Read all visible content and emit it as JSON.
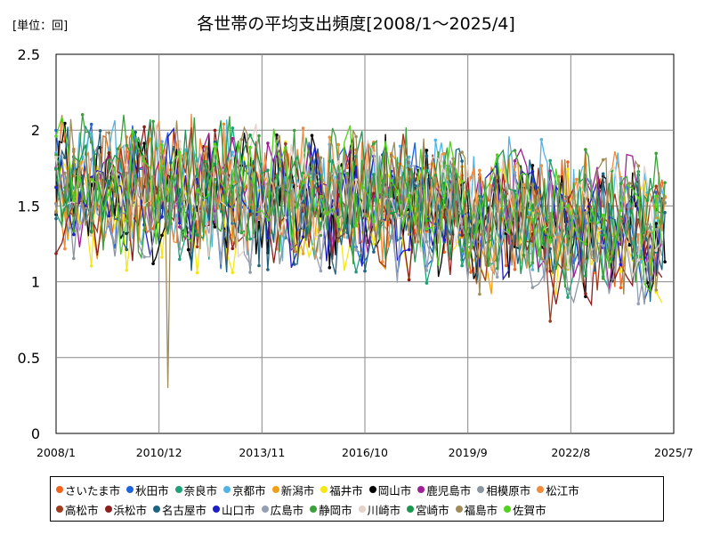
{
  "unit_label": "[単位：回]",
  "chart_data": {
    "type": "line",
    "title": "各世帯の平均支出頻度[2008/1～2025/4]",
    "xlabel": "",
    "ylabel": "",
    "x_range": [
      "2008/1",
      "2025/7"
    ],
    "x_ticks": [
      "2008/1",
      "2010/12",
      "2013/11",
      "2016/10",
      "2019/9",
      "2022/8",
      "2025/7"
    ],
    "y_range": [
      0,
      2.5
    ],
    "y_ticks": [
      "0",
      "0.5",
      "1",
      "1.5",
      "2",
      "2.5"
    ],
    "grid": true,
    "legend_position": "bottom",
    "series": [
      {
        "name": "さいたま市",
        "color": "#f0641e"
      },
      {
        "name": "秋田市",
        "color": "#1e64dc"
      },
      {
        "name": "奈良市",
        "color": "#1ea078"
      },
      {
        "name": "京都市",
        "color": "#50b4e6"
      },
      {
        "name": "新潟市",
        "color": "#f0a014"
      },
      {
        "name": "福井市",
        "color": "#f5e614"
      },
      {
        "name": "岡山市",
        "color": "#000000"
      },
      {
        "name": "鹿児島市",
        "color": "#a01e96"
      },
      {
        "name": "相模原市",
        "color": "#8c96a0"
      },
      {
        "name": "松江市",
        "color": "#f08c3c"
      },
      {
        "name": "高松市",
        "color": "#a03c1e"
      },
      {
        "name": "浜松市",
        "color": "#8c1e1e"
      },
      {
        "name": "名古屋市",
        "color": "#1e6482"
      },
      {
        "name": "山口市",
        "color": "#1e1ec8"
      },
      {
        "name": "広島市",
        "color": "#96a0b4"
      },
      {
        "name": "静岡市",
        "color": "#3ca03c"
      },
      {
        "name": "川崎市",
        "color": "#e6d2c8"
      },
      {
        "name": "宮崎市",
        "color": "#1e9650"
      },
      {
        "name": "福島市",
        "color": "#a08c5a"
      },
      {
        "name": "佐賀市",
        "color": "#50d21e"
      }
    ],
    "notable_points": [
      {
        "series": "福島市",
        "x": "2011/3",
        "y": 0.3
      },
      {
        "series": "高松市",
        "x": "2022/1",
        "y": 0.74
      }
    ]
  }
}
